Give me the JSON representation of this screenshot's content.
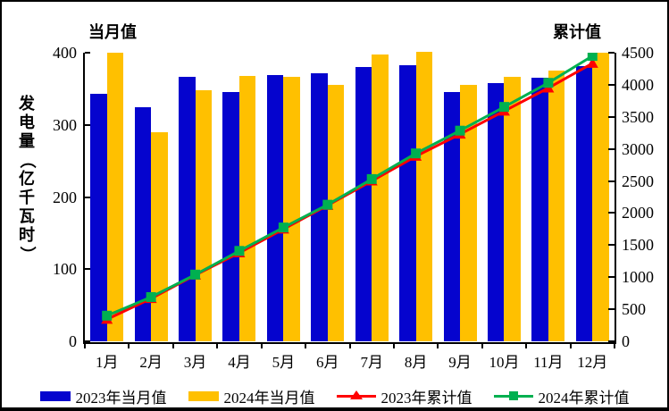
{
  "chart_data": {
    "type": "bar",
    "subtype": "combo-bar-line",
    "title_left": "当月值",
    "title_right": "累计值",
    "ylabel_left": "发电量（亿千瓦时）",
    "categories": [
      "1月",
      "2月",
      "3月",
      "4月",
      "5月",
      "6月",
      "7月",
      "8月",
      "9月",
      "10月",
      "11月",
      "12月"
    ],
    "left_axis": {
      "max": 400,
      "ticks": [
        "400",
        "300",
        "200",
        "100",
        "0"
      ]
    },
    "right_axis": {
      "max": 4500,
      "ticks": [
        "4500",
        "4000",
        "3500",
        "3000",
        "2500",
        "2000",
        "1500",
        "1000",
        "500",
        "0"
      ]
    },
    "series": [
      {
        "name": "2023年当月值",
        "type": "bar",
        "axis": "left",
        "color": "#0504CE",
        "values": [
          343,
          324,
          366,
          346,
          369,
          371,
          380,
          383,
          345,
          358,
          365,
          382
        ]
      },
      {
        "name": "2024年当月值",
        "type": "bar",
        "axis": "left",
        "color": "#FFC000",
        "values": [
          400,
          290,
          348,
          368,
          366,
          356,
          398,
          401,
          355,
          367,
          375,
          400
        ]
      },
      {
        "name": "2023年累计值",
        "type": "line",
        "axis": "right",
        "color": "#FF0000",
        "marker": "triangle",
        "values": [
          343,
          667,
          1033,
          1380,
          1750,
          2120,
          2500,
          2885,
          3230,
          3590,
          3950,
          4334
        ]
      },
      {
        "name": "2024年累计值",
        "type": "line",
        "axis": "right",
        "color": "#00B050",
        "marker": "square",
        "values": [
          400,
          690,
          1040,
          1410,
          1775,
          2130,
          2530,
          2930,
          3285,
          3655,
          4030,
          4450
        ]
      }
    ],
    "legend_position": "bottom",
    "grid": false,
    "frame_border_color": "#000000",
    "background_color": "#FFFFFF"
  }
}
